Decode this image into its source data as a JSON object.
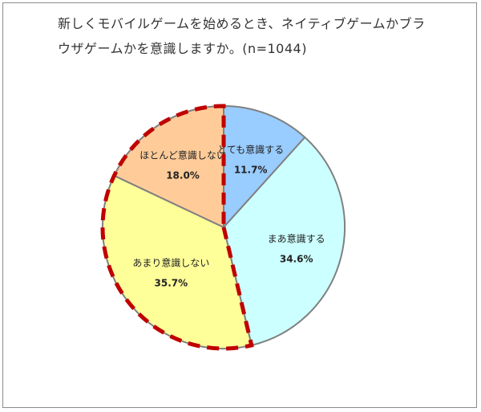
{
  "chart_data": {
    "type": "pie",
    "title": "新しくモバイルゲームを始めるとき、ネイティブゲームかブラウザゲームかを意識しますか。(n=1044)",
    "start_angle_deg": 0,
    "direction": "clockwise",
    "slices": [
      {
        "name": "とても意識する",
        "value": 11.7,
        "display": "11.7%",
        "color": "#99ccff"
      },
      {
        "name": "まあ意識する",
        "value": 34.6,
        "display": "34.6%",
        "color": "#ccffff"
      },
      {
        "name": "あまり意識しない",
        "value": 35.7,
        "display": "35.7%",
        "color": "#ffff99"
      },
      {
        "name": "ほとんど意識しない",
        "value": 18.0,
        "display": "18.0%",
        "color": "#ffcc99"
      }
    ],
    "highlight": {
      "slices": [
        "あまり意識しない",
        "ほとんど意識しない"
      ],
      "style": "dashed",
      "color": "#c00000"
    },
    "slice_border_color": "#808080"
  }
}
